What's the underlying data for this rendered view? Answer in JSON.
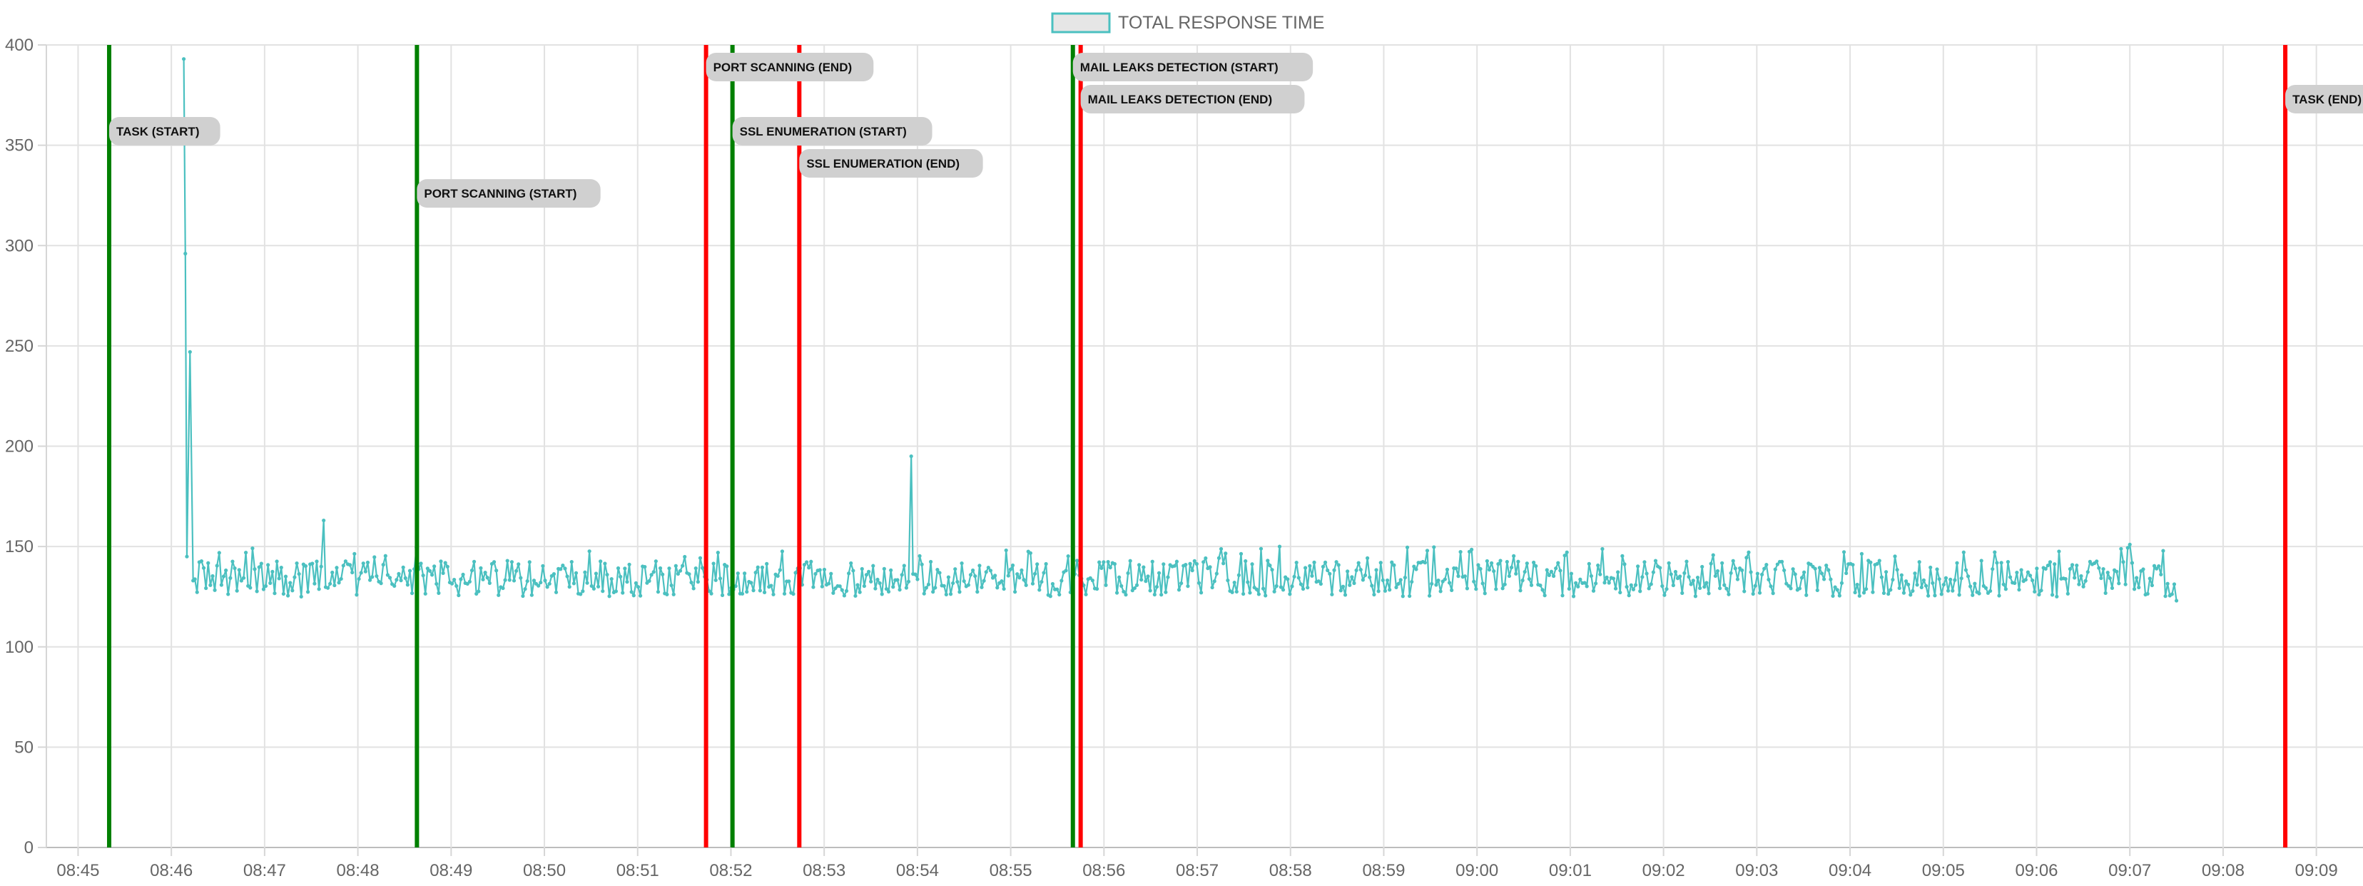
{
  "chart_data": {
    "type": "line",
    "legend": {
      "label": "TOTAL RESPONSE TIME",
      "position": "top-center"
    },
    "x_ticks": [
      "08:45",
      "08:46",
      "08:47",
      "08:48",
      "08:49",
      "08:50",
      "08:51",
      "08:52",
      "08:53",
      "08:54",
      "08:55",
      "08:56",
      "08:57",
      "08:58",
      "08:59",
      "09:00",
      "09:01",
      "09:02",
      "09:03",
      "09:04",
      "09:05",
      "09:06",
      "09:07",
      "09:08",
      "09:09"
    ],
    "x_range_minutes": [
      44.66,
      69.5
    ],
    "y_ticks": [
      0,
      50,
      100,
      150,
      200,
      250,
      300,
      350,
      400
    ],
    "ylim": [
      0,
      400
    ],
    "grid": true,
    "series": [
      {
        "name": "TOTAL RESPONSE TIME",
        "color": "#4bc0c0",
        "start": "08:46:08",
        "end": "09:07:30",
        "baseline_min": 120,
        "baseline_max": 150,
        "points": [
          {
            "x": "08:46:08",
            "y": 393
          },
          {
            "x": "08:46:09",
            "y": 296
          },
          {
            "x": "08:46:10",
            "y": 145
          },
          {
            "x": "08:46:12",
            "y": 247
          },
          {
            "x": "08:46:14",
            "y": 133
          },
          {
            "x": "08:47:38",
            "y": 163
          },
          {
            "x": "08:53:56",
            "y": 195
          },
          {
            "x": "08:57:53",
            "y": 150
          },
          {
            "x": "09:07:00",
            "y": 151
          },
          {
            "x": "09:07:30",
            "y": 123
          }
        ]
      }
    ],
    "annotations": [
      {
        "label": "TASK (START)",
        "time": "08:45:20",
        "color": "#008000",
        "label_y": 357
      },
      {
        "label": "PORT SCANNING (START)",
        "time": "08:48:38",
        "color": "#008000",
        "label_y": 326
      },
      {
        "label": "PORT SCANNING (END)",
        "time": "08:51:44",
        "color": "#ff0000",
        "label_y": 389
      },
      {
        "label": "SSL ENUMERATION (START)",
        "time": "08:52:01",
        "color": "#008000",
        "label_y": 357
      },
      {
        "label": "SSL ENUMERATION (END)",
        "time": "08:52:44",
        "color": "#ff0000",
        "label_y": 341
      },
      {
        "label": "MAIL LEAKS DETECTION (START)",
        "time": "08:55:40",
        "color": "#008000",
        "label_y": 389
      },
      {
        "label": "MAIL LEAKS DETECTION (END)",
        "time": "08:55:45",
        "color": "#ff0000",
        "label_y": 373
      },
      {
        "label": "TASK (END)",
        "time": "09:08:40",
        "color": "#ff0000",
        "label_y": 373
      }
    ]
  }
}
